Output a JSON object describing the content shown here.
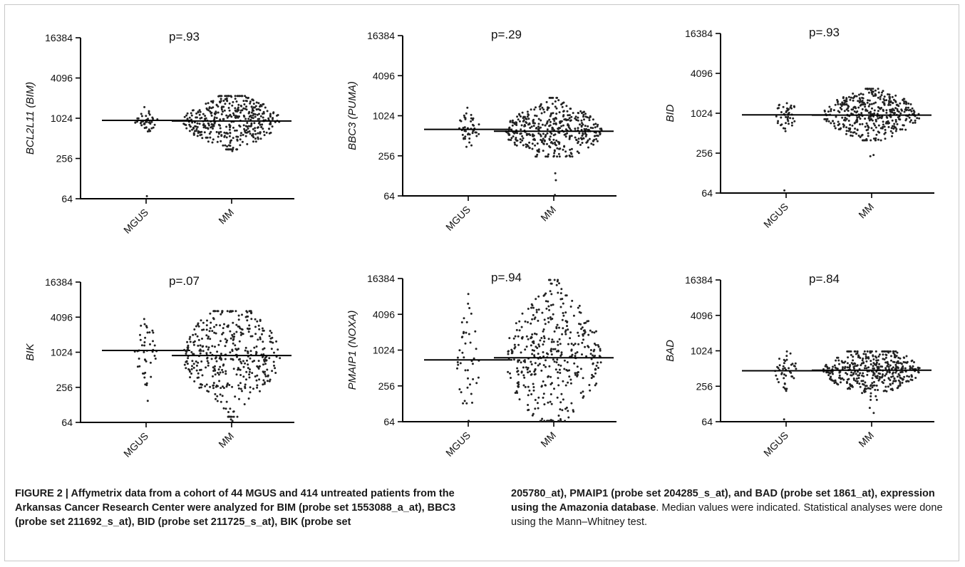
{
  "figure": {
    "chart_data": [
      {
        "type": "scatter",
        "ylabel": "BCL2L11 (BIM)",
        "pvalue": "p=.93",
        "categories": [
          "MGUS",
          "MM"
        ],
        "yticks": [
          64,
          256,
          1024,
          4096,
          16384
        ],
        "y_scale": "log2",
        "ylim": [
          64,
          16384
        ],
        "medians": [
          950,
          930
        ],
        "spread": [
          [
            600,
            1500
          ],
          [
            350,
            2200
          ]
        ],
        "outliers": [
          [
            70
          ],
          [
            330,
            370
          ]
        ]
      },
      {
        "type": "scatter",
        "ylabel": "BBC3 (PUMA)",
        "pvalue": "p=.29",
        "categories": [
          "MGUS",
          "MM"
        ],
        "yticks": [
          64,
          256,
          1024,
          4096,
          16384
        ],
        "y_scale": "log2",
        "ylim": [
          64,
          16384
        ],
        "medians": [
          640,
          600
        ],
        "spread": [
          [
            350,
            1350
          ],
          [
            250,
            1900
          ]
        ],
        "outliers": [
          [],
          [
            110,
            140,
            66
          ]
        ]
      },
      {
        "type": "scatter",
        "ylabel": "BID",
        "pvalue": "p=.93",
        "categories": [
          "MGUS",
          "MM"
        ],
        "yticks": [
          64,
          256,
          1024,
          4096,
          16384
        ],
        "y_scale": "log2",
        "ylim": [
          64,
          16384
        ],
        "medians": [
          970,
          960
        ],
        "spread": [
          [
            550,
            1500
          ],
          [
            400,
            2400
          ]
        ],
        "outliers": [
          [
            70
          ],
          [
            230,
            240
          ]
        ]
      },
      {
        "type": "scatter",
        "ylabel": "BIK",
        "pvalue": "p=.07",
        "categories": [
          "MGUS",
          "MM"
        ],
        "yticks": [
          64,
          256,
          1024,
          4096,
          16384
        ],
        "y_scale": "log2",
        "ylim": [
          64,
          16384
        ],
        "medians": [
          1100,
          900
        ],
        "spread": [
          [
            280,
            3800
          ],
          [
            80,
            5200
          ]
        ],
        "outliers": [
          [
            150
          ],
          [
            68,
            72
          ]
        ]
      },
      {
        "type": "scatter",
        "ylabel": "PMAIP1 (NOXA)",
        "pvalue": "p=.94",
        "categories": [
          "MGUS",
          "MM"
        ],
        "yticks": [
          64,
          256,
          1024,
          4096,
          16384
        ],
        "y_scale": "log2",
        "ylim": [
          64,
          16384
        ],
        "medians": [
          700,
          760
        ],
        "spread": [
          [
            130,
            9000
          ],
          [
            66,
            15500
          ]
        ],
        "outliers": [
          [
            66
          ],
          []
        ]
      },
      {
        "type": "scatter",
        "ylabel": "BAD",
        "pvalue": "p=.84",
        "categories": [
          "MGUS",
          "MM"
        ],
        "yticks": [
          64,
          256,
          1024,
          4096,
          16384
        ],
        "y_scale": "log2",
        "ylim": [
          64,
          16384
        ],
        "medians": [
          470,
          480
        ],
        "spread": [
          [
            200,
            1000
          ],
          [
            150,
            1000
          ]
        ],
        "outliers": [
          [
            70
          ],
          [
            90,
            110
          ]
        ]
      }
    ]
  },
  "caption": {
    "left": "FIGURE 2 | Affymetrix data from a cohort of 44 MGUS and 414 untreated patients from the Arkansas Cancer Research Center were analyzed for BIM (probe set 1553088_a_at), BBC3 (probe set 211692_s_at), BID (probe set 211725_s_at), BIK (probe set",
    "right_bold": "205780_at), PMAIP1 (probe set 204285_s_at), and BAD (probe set 1861_at), expression using the Amazonia database",
    "right_plain": ". Median values were indicated. Statistical analyses were done using the Mann–Whitney test."
  }
}
